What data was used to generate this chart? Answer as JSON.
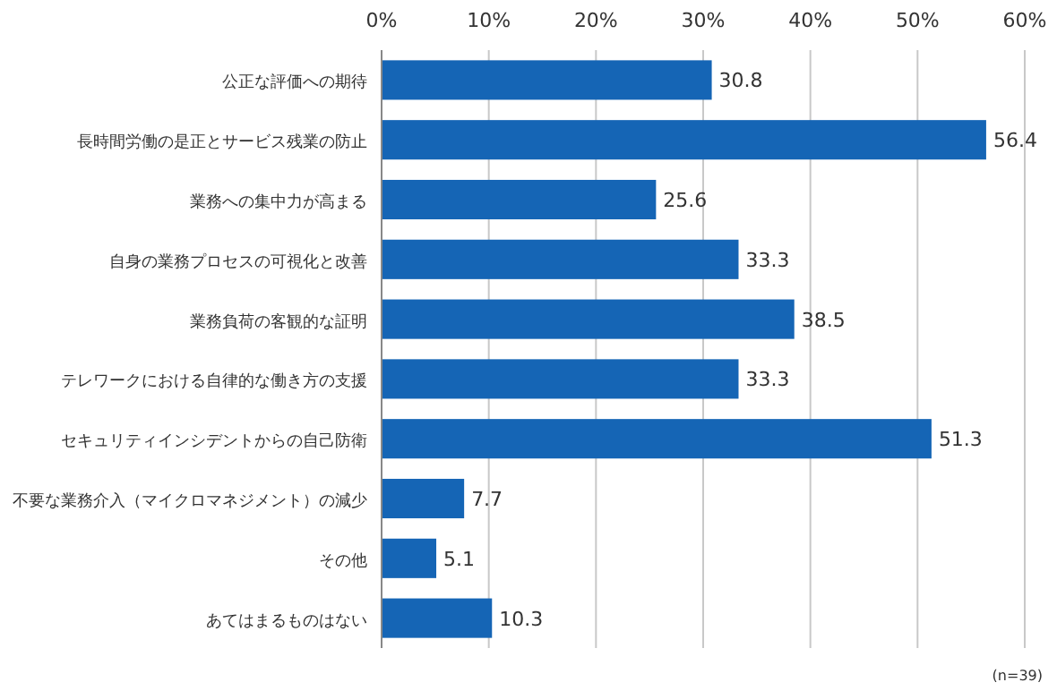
{
  "chart_data": {
    "type": "bar",
    "orientation": "horizontal",
    "categories": [
      "公正な評価への期待",
      "長時間労働の是正とサービス残業の防止",
      "業務への集中力が高まる",
      "自身の業務プロセスの可視化と改善",
      "業務負荷の客観的な証明",
      "テレワークにおける自律的な働き方の支援",
      "セキュリティインシデントからの自己防衛",
      "不要な業務介入（マイクロマネジメント）の減少",
      "その他",
      "あてはまるものはない"
    ],
    "values": [
      30.8,
      56.4,
      25.6,
      33.3,
      38.5,
      33.3,
      51.3,
      7.7,
      5.1,
      10.3
    ],
    "color": "#1565b5",
    "data_labels": true,
    "xlim": [
      0,
      60
    ],
    "xticks": [
      {
        "value": 0,
        "label": "0%"
      },
      {
        "value": 10,
        "label": "10%"
      },
      {
        "value": 20,
        "label": "20%"
      },
      {
        "value": 30,
        "label": "30%"
      },
      {
        "value": 40,
        "label": "40%"
      },
      {
        "value": 50,
        "label": "50%"
      },
      {
        "value": 60,
        "label": "60%"
      }
    ],
    "grid": "x",
    "annotations": [
      "(n=39)"
    ]
  }
}
